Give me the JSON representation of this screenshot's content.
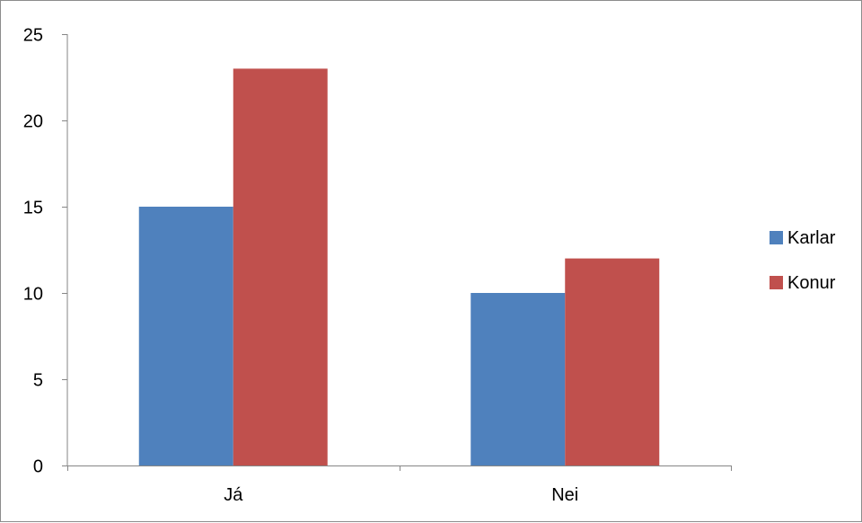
{
  "chart_data": {
    "type": "bar",
    "categories": [
      "Já",
      "Nei"
    ],
    "series": [
      {
        "name": "Karlar",
        "values": [
          15,
          10
        ],
        "color": "#4f81bd"
      },
      {
        "name": "Konur",
        "values": [
          23,
          12
        ],
        "color": "#c0504d"
      }
    ],
    "ylim": [
      0,
      25
    ],
    "yticks": [
      0,
      5,
      10,
      15,
      20,
      25
    ],
    "grid": false,
    "legend_position": "right",
    "title": "",
    "xlabel": "",
    "ylabel": ""
  },
  "colors": {
    "axis": "#868686",
    "frame": "#8c8c8c"
  }
}
